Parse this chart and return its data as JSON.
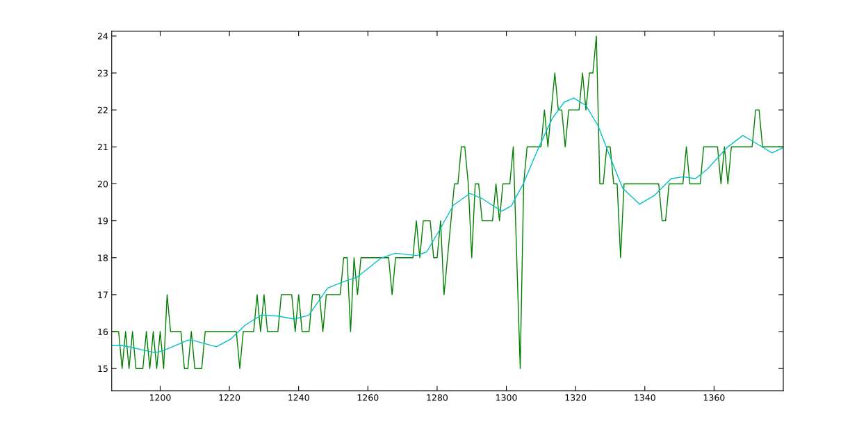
{
  "chart_data": {
    "type": "line",
    "xlim": [
      1186,
      1380
    ],
    "ylim": [
      14.4,
      24.13
    ],
    "xticks": [
      1200,
      1220,
      1240,
      1260,
      1280,
      1300,
      1320,
      1340,
      1360
    ],
    "yticks": [
      15,
      16,
      17,
      18,
      19,
      20,
      21,
      22,
      23,
      24
    ],
    "grid": false,
    "marker": "none",
    "line_style": "solid",
    "series": [
      {
        "color": "#008000",
        "x": [
          1186,
          1187,
          1188,
          1189,
          1190,
          1191,
          1192,
          1193,
          1194,
          1195,
          1196,
          1197,
          1198,
          1199,
          1200,
          1201,
          1202,
          1203,
          1204,
          1205,
          1206,
          1207,
          1208,
          1209,
          1210,
          1211,
          1212,
          1213,
          1214,
          1215,
          1216,
          1217,
          1218,
          1219,
          1220,
          1221,
          1222,
          1223,
          1224,
          1225,
          1226,
          1227,
          1228,
          1229,
          1230,
          1231,
          1232,
          1233,
          1234,
          1235,
          1236,
          1237,
          1238,
          1239,
          1240,
          1241,
          1242,
          1243,
          1244,
          1245,
          1246,
          1247,
          1248,
          1249,
          1250,
          1251,
          1252,
          1253,
          1254,
          1255,
          1256,
          1257,
          1258,
          1259,
          1260,
          1261,
          1262,
          1263,
          1264,
          1265,
          1266,
          1267,
          1268,
          1269,
          1270,
          1271,
          1272,
          1273,
          1274,
          1275,
          1276,
          1277,
          1278,
          1279,
          1280,
          1281,
          1282,
          1283,
          1284,
          1285,
          1286,
          1287,
          1288,
          1289,
          1290,
          1291,
          1292,
          1293,
          1294,
          1295,
          1296,
          1297,
          1298,
          1299,
          1300,
          1301,
          1302,
          1303,
          1304,
          1305,
          1306,
          1307,
          1308,
          1309,
          1310,
          1311,
          1312,
          1313,
          1314,
          1315,
          1316,
          1317,
          1318,
          1319,
          1320,
          1321,
          1322,
          1323,
          1324,
          1325,
          1326,
          1327,
          1328,
          1329,
          1330,
          1331,
          1332,
          1333,
          1334,
          1335,
          1336,
          1337,
          1338,
          1339,
          1340,
          1341,
          1342,
          1343,
          1344,
          1345,
          1346,
          1347,
          1348,
          1349,
          1350,
          1351,
          1352,
          1353,
          1354,
          1355,
          1356,
          1357,
          1358,
          1359,
          1360,
          1361,
          1362,
          1363,
          1364,
          1365,
          1366,
          1367,
          1368,
          1369,
          1370,
          1371,
          1372,
          1373,
          1374,
          1375,
          1376,
          1377,
          1378,
          1379,
          1380
        ],
        "values": [
          16,
          16,
          16,
          15,
          16,
          15,
          16,
          15,
          15,
          15,
          16,
          15,
          16,
          15,
          16,
          15,
          17,
          16,
          16,
          16,
          16,
          15,
          15,
          16,
          15,
          15,
          15,
          16,
          16,
          16,
          16,
          16,
          16,
          16,
          16,
          16,
          16,
          15,
          16,
          16,
          16,
          16,
          17,
          16,
          17,
          16,
          16,
          16,
          16,
          17,
          17,
          17,
          17,
          16,
          17,
          16,
          16,
          16,
          17,
          17,
          17,
          16,
          17,
          17,
          17,
          17,
          17,
          18,
          18,
          16,
          18,
          17,
          18,
          18,
          18,
          18,
          18,
          18,
          18,
          18,
          18,
          17,
          18,
          18,
          18,
          18,
          18,
          18,
          19,
          18,
          19,
          19,
          19,
          18,
          18,
          19,
          17,
          18,
          19,
          20,
          20,
          21,
          21,
          20,
          18,
          20,
          20,
          19,
          19,
          19,
          19,
          20,
          19,
          20,
          20,
          20,
          21,
          18,
          15,
          20,
          21,
          21,
          21,
          21,
          21,
          22,
          21,
          22,
          23,
          22,
          22,
          21,
          22,
          22,
          22,
          22,
          23,
          22,
          23,
          23,
          24,
          20,
          20,
          21,
          21,
          20,
          20,
          18,
          20,
          20,
          20,
          20,
          20,
          20,
          20,
          20,
          20,
          20,
          20,
          19,
          19,
          20,
          20,
          20,
          20,
          20,
          21,
          20,
          20,
          20,
          20,
          21,
          21,
          21,
          21,
          21,
          20,
          21,
          20,
          21,
          21,
          21,
          21,
          21,
          21,
          21,
          22,
          22,
          21,
          21,
          21,
          21,
          21,
          21,
          21
        ]
      },
      {
        "color": "#00bfc8",
        "x": [
          1186,
          1189,
          1195.5,
          1198.6,
          1201,
          1208,
          1210,
          1216.2,
          1220.3,
          1224.5,
          1229.3,
          1234,
          1238.7,
          1242.9,
          1248.4,
          1252.6,
          1256.8,
          1263.8,
          1267.9,
          1274.2,
          1277,
          1281,
          1284.7,
          1289.5,
          1293,
          1298.6,
          1301.4,
          1304.9,
          1309,
          1313.2,
          1316.7,
          1319.5,
          1323,
          1326.5,
          1330.5,
          1333.6,
          1338.5,
          1342.7,
          1347.6,
          1351.1,
          1354.6,
          1358.1,
          1363.7,
          1368.3,
          1372.1,
          1376.7,
          1380
        ],
        "values": [
          15.62,
          15.63,
          15.49,
          15.43,
          15.49,
          15.77,
          15.75,
          15.59,
          15.79,
          16.17,
          16.45,
          16.42,
          16.34,
          16.44,
          17.18,
          17.34,
          17.47,
          17.99,
          18.12,
          18.06,
          18.16,
          18.8,
          19.42,
          19.74,
          19.6,
          19.26,
          19.4,
          20.0,
          20.91,
          21.76,
          22.21,
          22.32,
          22.12,
          21.57,
          20.6,
          19.88,
          19.45,
          19.68,
          20.14,
          20.19,
          20.14,
          20.4,
          20.98,
          21.31,
          21.1,
          20.84,
          20.98
        ]
      }
    ]
  }
}
